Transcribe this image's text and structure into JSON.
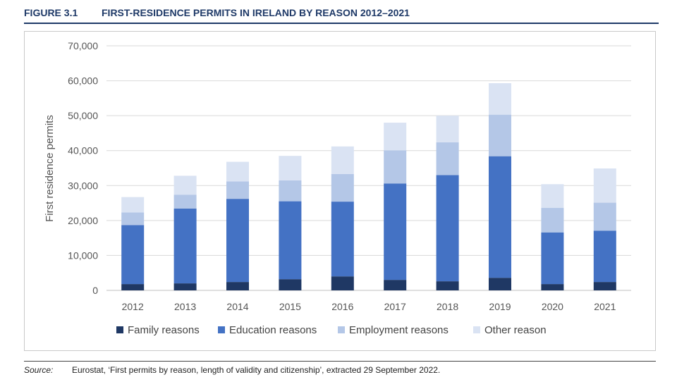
{
  "figure": {
    "number": "FIGURE 3.1",
    "title": "FIRST-RESIDENCE PERMITS IN IRELAND BY REASON 2012–2021"
  },
  "source": {
    "label": "Source:",
    "text": "Eurostat, ‘First permits by reason, length of validity and citizenship’, extracted 29 September 2022."
  },
  "chart_data": {
    "type": "bar",
    "stacked": true,
    "title": "FIRST-RESIDENCE PERMITS IN IRELAND BY REASON 2012–2021",
    "xlabel": "",
    "ylabel": "First residence permits",
    "ylim": [
      0,
      70000
    ],
    "yticks": [
      0,
      10000,
      20000,
      30000,
      40000,
      50000,
      60000,
      70000
    ],
    "ytick_labels": [
      "0",
      "10,000",
      "20,000",
      "30,000",
      "40,000",
      "50,000",
      "60,000",
      "70,000"
    ],
    "grid": true,
    "legend_position": "bottom",
    "categories": [
      "2012",
      "2013",
      "2014",
      "2015",
      "2016",
      "2017",
      "2018",
      "2019",
      "2020",
      "2021"
    ],
    "series": [
      {
        "name": "Family reasons",
        "color": "#1f3864",
        "values": [
          1800,
          2000,
          2400,
          3200,
          4000,
          3000,
          2600,
          3600,
          1800,
          2400
        ]
      },
      {
        "name": "Education reasons",
        "color": "#4472c4",
        "values": [
          16900,
          21400,
          23800,
          22300,
          21400,
          27600,
          30400,
          34800,
          14800,
          14700
        ]
      },
      {
        "name": "Employment reasons",
        "color": "#b4c7e7",
        "values": [
          3600,
          4000,
          5000,
          6000,
          7900,
          9500,
          9400,
          11900,
          7000,
          8000
        ]
      },
      {
        "name": "Other reason",
        "color": "#dae3f3",
        "values": [
          4400,
          5400,
          5600,
          7000,
          7900,
          7900,
          7600,
          9000,
          6800,
          9800
        ]
      }
    ]
  }
}
